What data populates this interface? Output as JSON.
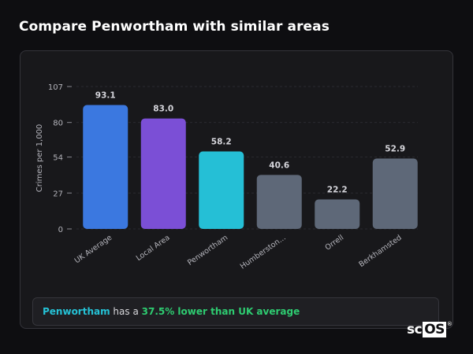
{
  "title": "Compare Penwortham with similar areas",
  "summary": {
    "area": "Penwortham",
    "middle": " has a ",
    "highlight": "37.5% lower than UK average"
  },
  "logo": {
    "prefix": "sc",
    "boxed": "OS",
    "mark": "®"
  },
  "colors": {
    "background": "#0e0e11",
    "card": "#18181b",
    "uk_average": "#3b78e0",
    "local_area": "#7b4fd6",
    "focus_area": "#25bfd6",
    "comparison": "#5e6878",
    "highlight": "#2ecc71"
  },
  "chart_data": {
    "type": "bar",
    "ylabel": "Crimes per 1,000",
    "ylim": [
      0,
      107
    ],
    "yticks": [
      0,
      27,
      54,
      80,
      107
    ],
    "categories": [
      "UK Average",
      "Local Area",
      "Penwortham",
      "Humberston...",
      "Orrell",
      "Berkhamsted"
    ],
    "values": [
      93.1,
      83.0,
      58.2,
      40.6,
      22.2,
      52.9
    ],
    "value_labels": [
      "93.1",
      "83.0",
      "58.2",
      "40.6",
      "22.2",
      "52.9"
    ],
    "bar_colors": [
      "#3b78e0",
      "#7b4fd6",
      "#25bfd6",
      "#5e6878",
      "#5e6878",
      "#5e6878"
    ],
    "grid": true
  }
}
